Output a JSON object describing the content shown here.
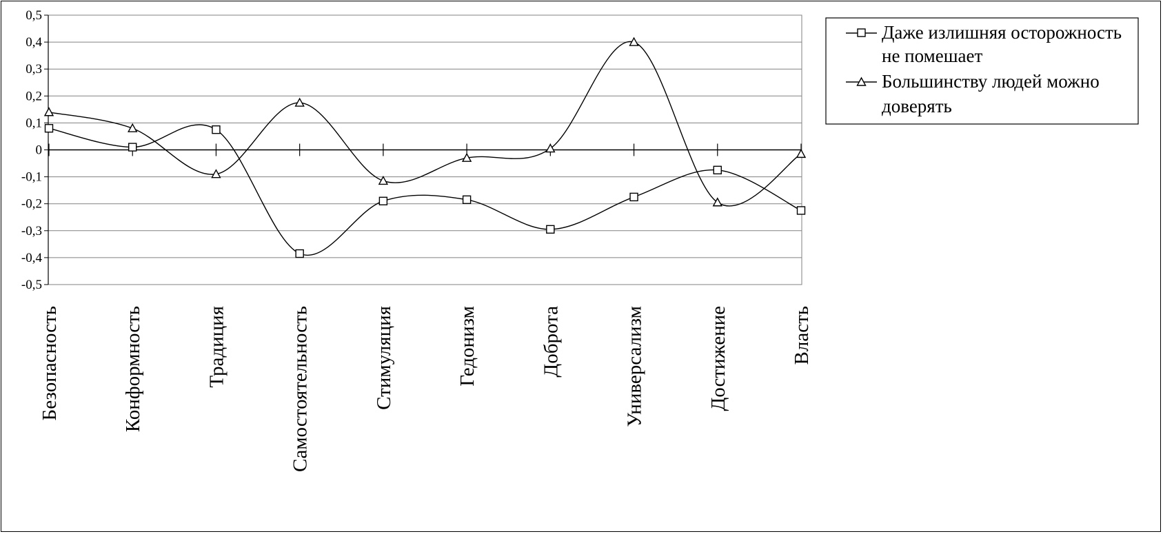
{
  "chart_data": {
    "type": "line",
    "categories": [
      "Безопасность",
      "Конформность",
      "Традиция",
      "Самостоятельность",
      "Стимуляция",
      "Гедонизм",
      "Доброта",
      "Универсализм",
      "Достижение",
      "Власть"
    ],
    "ylim": [
      -0.5,
      0.5
    ],
    "ytick_labels": [
      "0,5",
      "0,4",
      "0,3",
      "0,2",
      "0,1",
      "0",
      "-0,1",
      "-0,2",
      "-0,3",
      "-0,4",
      "-0,5"
    ],
    "grid": true,
    "legend_position": "top-right",
    "series": [
      {
        "name_lines": [
          "Даже излишняя осторожность",
          "не помешает"
        ],
        "marker": "square",
        "values": [
          0.08,
          0.01,
          0.075,
          -0.385,
          -0.19,
          -0.185,
          -0.295,
          -0.175,
          -0.075,
          -0.225
        ]
      },
      {
        "name_lines": [
          "Большинству людей можно",
          "доверять"
        ],
        "marker": "triangle",
        "values": [
          0.14,
          0.08,
          -0.09,
          0.175,
          -0.115,
          -0.03,
          0.005,
          0.4,
          -0.195,
          -0.015
        ]
      }
    ],
    "colors": {
      "line": "#000000",
      "grid": "#808080",
      "background": "#ffffff"
    }
  }
}
